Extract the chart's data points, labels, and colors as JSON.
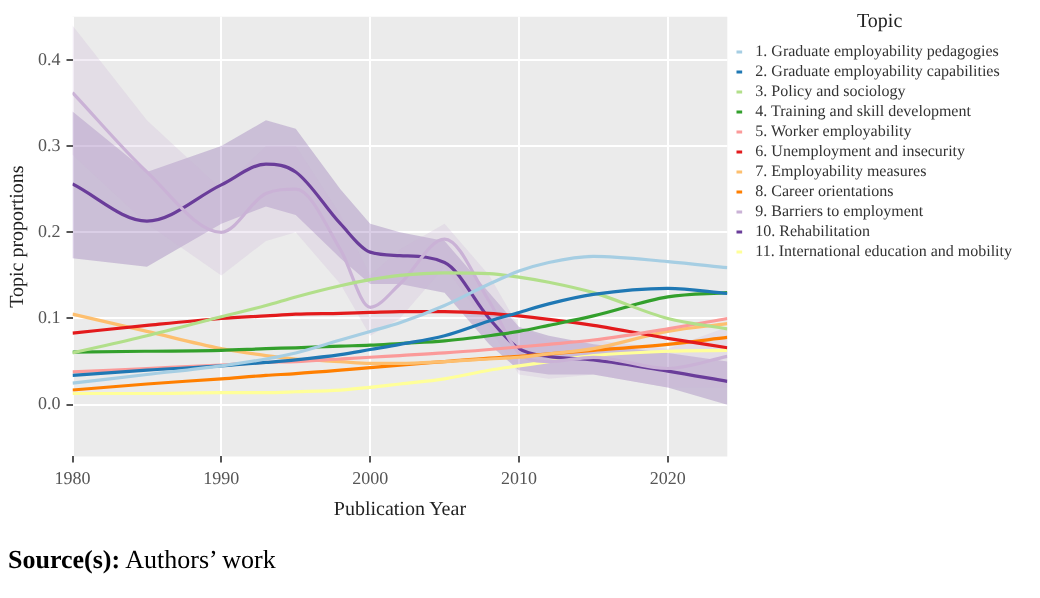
{
  "chart_data": {
    "type": "line",
    "xlabel": "Publication Year",
    "ylabel": "Topic proportions",
    "legend_title": "Topic",
    "legend": "right",
    "grid": true,
    "marker": "none",
    "line_style": "solid",
    "x": [
      1980,
      1985,
      1990,
      1993,
      1995,
      1998,
      2000,
      2002,
      2005,
      2008,
      2010,
      2012,
      2015,
      2020,
      2024
    ],
    "xlim": [
      1980,
      2024
    ],
    "xticks": [
      1980,
      1990,
      2000,
      2010,
      2020
    ],
    "ylim": [
      -0.06,
      0.45
    ],
    "yticks": [
      {
        "value": 0,
        "label": "0.0"
      },
      0.1,
      0.2,
      0.3,
      0.4
    ],
    "series": [
      {
        "name": "1. Graduate employability pedagogies",
        "color": "#a6cee3",
        "values": [
          0.025,
          0.035,
          0.045,
          0.053,
          0.06,
          0.075,
          0.085,
          0.095,
          0.115,
          0.14,
          0.155,
          0.165,
          0.172,
          0.166,
          0.159
        ]
      },
      {
        "name": "2. Graduate employability capabilities",
        "color": "#1f78b4",
        "values": [
          0.034,
          0.04,
          0.045,
          0.049,
          0.052,
          0.058,
          0.064,
          0.07,
          0.08,
          0.097,
          0.107,
          0.117,
          0.128,
          0.135,
          0.129
        ]
      },
      {
        "name": "3. Policy and sociology",
        "color": "#b2df8a",
        "values": [
          0.06,
          0.08,
          0.102,
          0.115,
          0.125,
          0.138,
          0.145,
          0.15,
          0.153,
          0.152,
          0.148,
          0.142,
          0.13,
          0.1,
          0.088
        ]
      },
      {
        "name": "4. Training and skill development",
        "color": "#33a02c",
        "values": [
          0.061,
          0.062,
          0.063,
          0.065,
          0.066,
          0.068,
          0.069,
          0.071,
          0.074,
          0.08,
          0.085,
          0.092,
          0.103,
          0.125,
          0.13
        ]
      },
      {
        "name": "5. Worker employability",
        "color": "#fb9a99",
        "values": [
          0.038,
          0.042,
          0.046,
          0.049,
          0.05,
          0.053,
          0.055,
          0.057,
          0.06,
          0.064,
          0.067,
          0.07,
          0.075,
          0.088,
          0.1
        ]
      },
      {
        "name": "6. Unemployment and insecurity",
        "color": "#e31a1c",
        "values": [
          0.083,
          0.092,
          0.1,
          0.103,
          0.105,
          0.106,
          0.107,
          0.108,
          0.108,
          0.106,
          0.103,
          0.099,
          0.092,
          0.077,
          0.066
        ]
      },
      {
        "name": "7. Employability measures",
        "color": "#fdbf6f",
        "values": [
          0.105,
          0.085,
          0.065,
          0.057,
          0.053,
          0.05,
          0.048,
          0.048,
          0.05,
          0.053,
          0.055,
          0.059,
          0.065,
          0.085,
          0.094
        ]
      },
      {
        "name": "8. Career orientations",
        "color": "#ff7f00",
        "values": [
          0.017,
          0.024,
          0.03,
          0.034,
          0.036,
          0.04,
          0.043,
          0.046,
          0.05,
          0.054,
          0.056,
          0.059,
          0.063,
          0.07,
          0.078
        ]
      },
      {
        "name": "9. Barriers to employment",
        "color": "#cab2d6",
        "values": [
          0.362,
          0.27,
          0.2,
          0.245,
          0.25,
          0.18,
          0.113,
          0.14,
          0.192,
          0.12,
          0.06,
          0.05,
          0.055,
          0.042,
          0.056
        ],
        "lower": [
          0.29,
          0.21,
          0.15,
          0.19,
          0.2,
          0.14,
          0.08,
          0.1,
          0.16,
          0.09,
          0.035,
          0.03,
          0.035,
          0.02,
          0.02
        ],
        "upper": [
          0.44,
          0.33,
          0.25,
          0.3,
          0.3,
          0.22,
          0.15,
          0.18,
          0.21,
          0.15,
          0.09,
          0.075,
          0.075,
          0.065,
          0.09
        ]
      },
      {
        "name": "10. Rehabilitation",
        "color": "#6a3d9a",
        "values": [
          0.256,
          0.213,
          0.255,
          0.279,
          0.27,
          0.21,
          0.177,
          0.173,
          0.165,
          0.1,
          0.065,
          0.056,
          0.052,
          0.039,
          0.027
        ],
        "lower": [
          0.17,
          0.16,
          0.21,
          0.23,
          0.22,
          0.17,
          0.14,
          0.14,
          0.13,
          0.07,
          0.04,
          0.035,
          0.035,
          0.02,
          0.0
        ],
        "upper": [
          0.34,
          0.27,
          0.3,
          0.33,
          0.32,
          0.25,
          0.21,
          0.2,
          0.19,
          0.13,
          0.09,
          0.08,
          0.07,
          0.06,
          0.05
        ]
      },
      {
        "name": "11. International education and mobility",
        "color": "#ffff99",
        "values": [
          0.013,
          0.013,
          0.014,
          0.014,
          0.015,
          0.017,
          0.02,
          0.024,
          0.03,
          0.04,
          0.045,
          0.05,
          0.057,
          0.062,
          0.063
        ]
      }
    ],
    "annotations": [
      "Source(s): Authors’ work"
    ]
  }
}
